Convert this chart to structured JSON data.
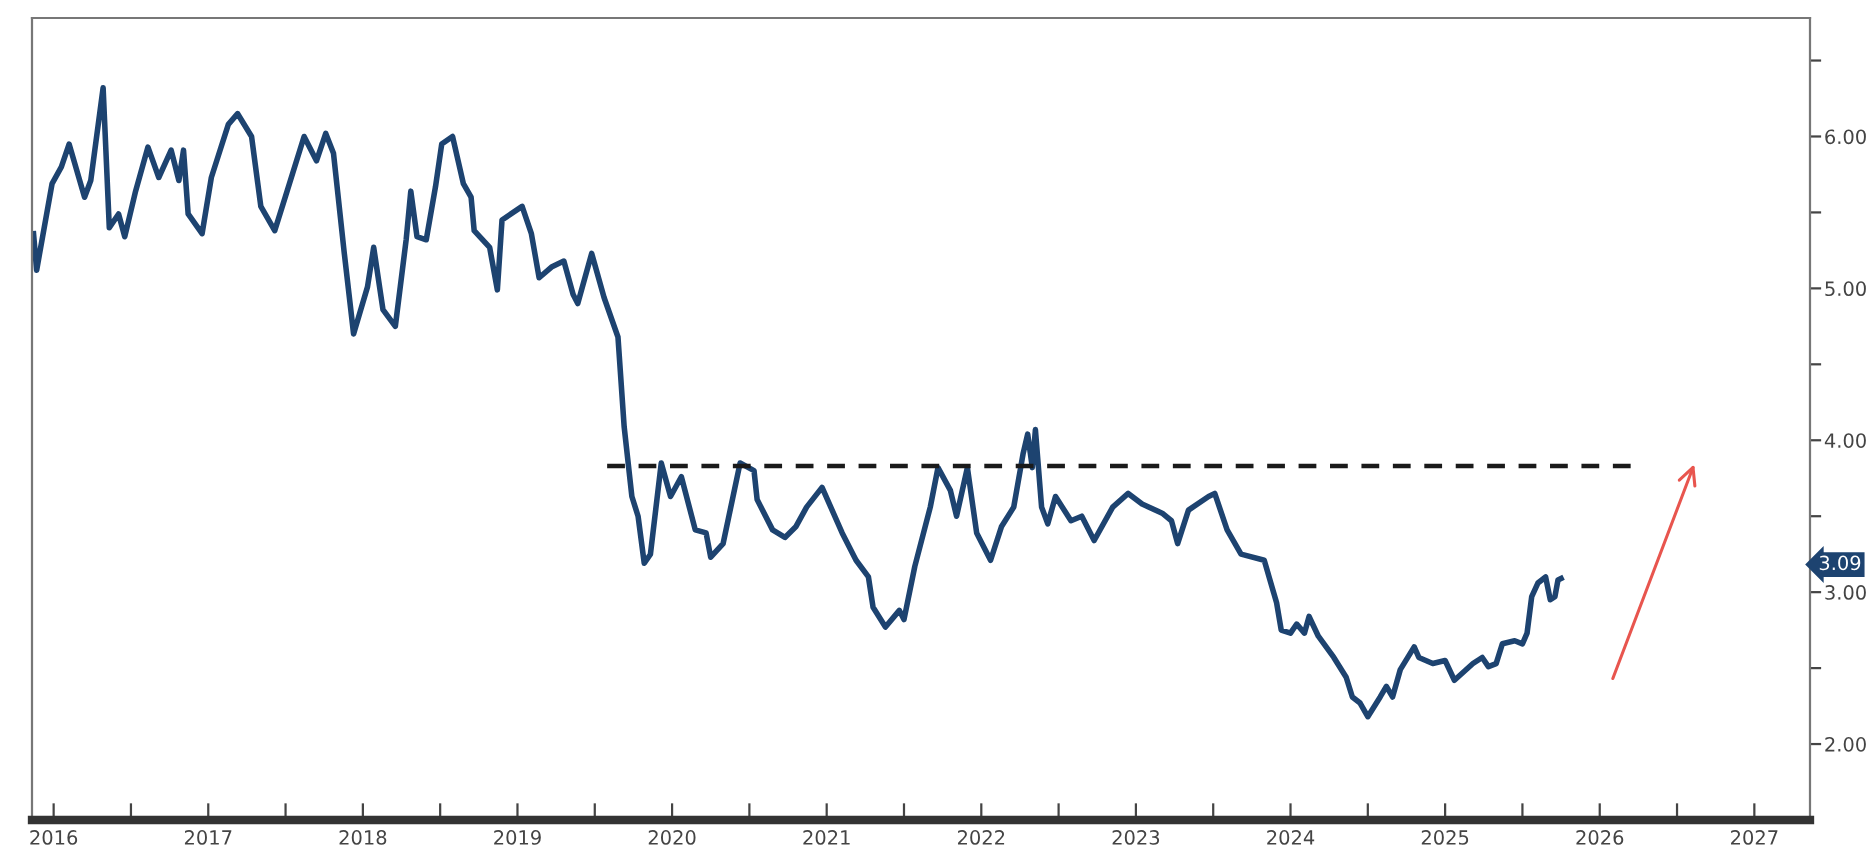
{
  "chart_data": {
    "type": "line",
    "xlim": [
      2016.36,
      2027.86
    ],
    "ylim": [
      1.5,
      6.78
    ],
    "xticks": [
      {
        "value": 2016.5,
        "label": "2016"
      },
      {
        "value": 2017,
        "label": null
      },
      {
        "value": 2017.5,
        "label": "2017"
      },
      {
        "value": 2018,
        "label": null
      },
      {
        "value": 2018.5,
        "label": "2018"
      },
      {
        "value": 2019,
        "label": null
      },
      {
        "value": 2019.5,
        "label": "2019"
      },
      {
        "value": 2020,
        "label": null
      },
      {
        "value": 2020.5,
        "label": "2020"
      },
      {
        "value": 2021,
        "label": null
      },
      {
        "value": 2021.5,
        "label": "2021"
      },
      {
        "value": 2022,
        "label": null
      },
      {
        "value": 2022.5,
        "label": "2022"
      },
      {
        "value": 2023,
        "label": null
      },
      {
        "value": 2023.5,
        "label": "2023"
      },
      {
        "value": 2024,
        "label": null
      },
      {
        "value": 2024.5,
        "label": "2024"
      },
      {
        "value": 2025,
        "label": null
      },
      {
        "value": 2025.5,
        "label": "2025"
      },
      {
        "value": 2026,
        "label": null
      },
      {
        "value": 2026.5,
        "label": "2026"
      },
      {
        "value": 2027,
        "label": null
      },
      {
        "value": 2027.5,
        "label": "2027"
      }
    ],
    "yticks": [
      {
        "value": 2,
        "label": "2.00"
      },
      {
        "value": 2.5,
        "label": null
      },
      {
        "value": 3,
        "label": "3.00"
      },
      {
        "value": 3.5,
        "label": null
      },
      {
        "value": 4,
        "label": "4.00"
      },
      {
        "value": 4.5,
        "label": null
      },
      {
        "value": 5,
        "label": "5.00"
      },
      {
        "value": 5.5,
        "label": null
      },
      {
        "value": 6,
        "label": "6.00"
      },
      {
        "value": 6.5,
        "label": null
      }
    ],
    "grid": false,
    "legend": false,
    "annotations": [
      "3.09"
    ],
    "series": [
      {
        "color": "#1d4370",
        "line_style": "solid",
        "x": [
          2016.37,
          2016.39,
          2016.49,
          2016.55,
          2016.6,
          2016.7,
          2016.74,
          2016.82,
          2016.86,
          2016.92,
          2016.96,
          2017.03,
          2017.11,
          2017.18,
          2017.26,
          2017.31,
          2017.34,
          2017.37,
          2017.46,
          2017.52,
          2017.63,
          2017.69,
          2017.78,
          2017.84,
          2017.93,
          2018.01,
          2018.12,
          2018.2,
          2018.26,
          2018.31,
          2018.38,
          2018.44,
          2018.53,
          2018.57,
          2018.63,
          2018.71,
          2018.78,
          2018.81,
          2018.85,
          2018.91,
          2018.97,
          2019.01,
          2019.08,
          2019.15,
          2019.2,
          2019.22,
          2019.32,
          2019.37,
          2019.4,
          2019.53,
          2019.59,
          2019.64,
          2019.72,
          2019.8,
          2019.86,
          2019.89,
          2019.98,
          2020.06,
          2020.15,
          2020.19,
          2020.24,
          2020.28,
          2020.32,
          2020.36,
          2020.43,
          2020.49,
          2020.56,
          2020.65,
          2020.72,
          2020.75,
          2020.83,
          2020.94,
          2021.03,
          2021.05,
          2021.15,
          2021.23,
          2021.3,
          2021.37,
          2021.47,
          2021.6,
          2021.69,
          2021.77,
          2021.8,
          2021.88,
          2021.97,
          2022.0,
          2022.07,
          2022.17,
          2022.22,
          2022.3,
          2022.34,
          2022.41,
          2022.47,
          2022.56,
          2022.63,
          2022.71,
          2022.77,
          2022.8,
          2022.83,
          2022.85,
          2022.89,
          2022.93,
          2022.98,
          2023.08,
          2023.15,
          2023.23,
          2023.35,
          2023.45,
          2023.54,
          2023.67,
          2023.73,
          2023.77,
          2023.84,
          2023.97,
          2024.01,
          2024.09,
          2024.18,
          2024.33,
          2024.41,
          2024.44,
          2024.5,
          2024.54,
          2024.59,
          2024.62,
          2024.68,
          2024.78,
          2024.86,
          2024.9,
          2024.95,
          2025.0,
          2025.08,
          2025.12,
          2025.16,
          2025.21,
          2025.3,
          2025.33,
          2025.42,
          2025.5,
          2025.56,
          2025.68,
          2025.74,
          2025.78,
          2025.83,
          2025.87,
          2025.95,
          2026.0,
          2026.03,
          2026.06,
          2026.1,
          2026.15,
          2026.18,
          2026.21,
          2026.23,
          2026.25
        ],
        "values": [
          5.36,
          5.12,
          5.69,
          5.8,
          5.95,
          5.6,
          5.71,
          6.32,
          5.4,
          5.49,
          5.34,
          5.64,
          5.93,
          5.73,
          5.91,
          5.71,
          5.91,
          5.49,
          5.36,
          5.73,
          6.08,
          6.15,
          6.0,
          5.54,
          5.38,
          5.64,
          6.0,
          5.84,
          6.02,
          5.89,
          5.23,
          4.7,
          5.01,
          5.27,
          4.86,
          4.75,
          5.32,
          5.64,
          5.34,
          5.32,
          5.67,
          5.95,
          6.0,
          5.69,
          5.6,
          5.38,
          5.27,
          4.99,
          5.45,
          5.54,
          5.36,
          5.07,
          5.14,
          5.18,
          4.96,
          4.9,
          5.23,
          4.94,
          4.68,
          4.09,
          3.63,
          3.5,
          3.19,
          3.25,
          3.85,
          3.63,
          3.76,
          3.41,
          3.39,
          3.23,
          3.32,
          3.85,
          3.8,
          3.61,
          3.41,
          3.36,
          3.43,
          3.56,
          3.69,
          3.39,
          3.21,
          3.1,
          2.9,
          2.77,
          2.88,
          2.82,
          3.17,
          3.56,
          3.82,
          3.67,
          3.5,
          3.82,
          3.39,
          3.21,
          3.43,
          3.56,
          3.91,
          4.04,
          3.82,
          4.07,
          3.56,
          3.45,
          3.63,
          3.47,
          3.5,
          3.34,
          3.56,
          3.65,
          3.58,
          3.52,
          3.47,
          3.32,
          3.54,
          3.63,
          3.65,
          3.41,
          3.25,
          3.21,
          2.93,
          2.75,
          2.73,
          2.79,
          2.73,
          2.84,
          2.71,
          2.57,
          2.44,
          2.31,
          2.27,
          2.18,
          2.31,
          2.38,
          2.31,
          2.49,
          2.64,
          2.57,
          2.53,
          2.55,
          2.42,
          2.53,
          2.57,
          2.51,
          2.53,
          2.66,
          2.68,
          2.66,
          2.73,
          2.97,
          3.06,
          3.1,
          2.95,
          2.97,
          3.08,
          3.09
        ]
      },
      {
        "type": "line",
        "color": "#1a1a1a",
        "line_style": "dashed",
        "x": [
          2020.08,
          2026.7
        ],
        "values": [
          3.83,
          3.83
        ]
      }
    ]
  }
}
